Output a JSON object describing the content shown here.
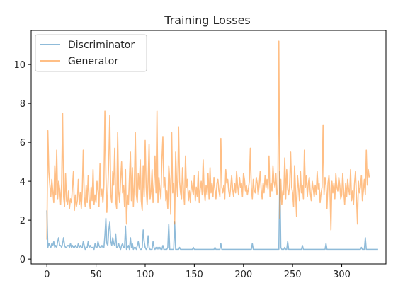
{
  "chart_data": {
    "type": "line",
    "title": "Training Losses",
    "xlabel": "",
    "ylabel": "",
    "xlim": [
      -16,
      345
    ],
    "ylim": [
      -0.25,
      11.75
    ],
    "xticks": [
      0,
      50,
      100,
      150,
      200,
      250,
      300
    ],
    "yticks": [
      0,
      2,
      4,
      6,
      8,
      10
    ],
    "grid": false,
    "legend_position": "top-left",
    "series": [
      {
        "name": "Discriminator",
        "color": "#1f77b4",
        "alpha": 0.5,
        "x_start": 0,
        "x_step": 1,
        "values": [
          2.5,
          0.6,
          0.8,
          0.7,
          0.6,
          0.8,
          0.7,
          0.9,
          0.6,
          0.7,
          0.6,
          0.9,
          1.1,
          0.7,
          0.7,
          0.6,
          0.8,
          1.1,
          0.7,
          0.6,
          0.6,
          0.7,
          0.7,
          0.6,
          0.8,
          0.6,
          0.7,
          0.6,
          0.6,
          0.7,
          0.6,
          0.6,
          0.8,
          0.6,
          0.7,
          0.6,
          0.6,
          0.9,
          0.7,
          0.5,
          0.6,
          0.6,
          0.9,
          0.6,
          0.7,
          0.6,
          0.6,
          0.6,
          0.5,
          0.8,
          0.6,
          0.6,
          0.9,
          0.7,
          0.6,
          0.6,
          0.7,
          0.6,
          0.6,
          1.2,
          2.1,
          0.8,
          0.7,
          1.5,
          1.9,
          0.9,
          0.7,
          1.1,
          0.8,
          0.7,
          1.3,
          0.6,
          0.6,
          0.8,
          0.6,
          0.5,
          0.7,
          0.8,
          0.6,
          0.6,
          1.7,
          0.5,
          0.6,
          0.7,
          0.5,
          1.1,
          0.6,
          0.8,
          0.5,
          0.6,
          0.6,
          0.5,
          0.7,
          0.9,
          0.6,
          0.5,
          0.5,
          0.6,
          1.5,
          0.9,
          0.6,
          0.5,
          0.6,
          1.2,
          0.6,
          0.5,
          0.5,
          0.5,
          0.9,
          0.6,
          0.5,
          0.6,
          0.5,
          0.6,
          0.5,
          0.6,
          0.5,
          0.5,
          0.7,
          0.5,
          0.5,
          0.5,
          0.5,
          0.6,
          1.8,
          0.5,
          0.5,
          0.5,
          0.5,
          0.5,
          1.9,
          0.5,
          0.5,
          0.5,
          0.5,
          0.6,
          0.5,
          0.5,
          0.5,
          0.5,
          0.5,
          0.5,
          0.5,
          0.5,
          0.5,
          0.5,
          0.5,
          0.5,
          0.5,
          0.6,
          0.5,
          0.5,
          0.5,
          0.5,
          0.5,
          0.5,
          0.5,
          0.5,
          0.5,
          0.5,
          0.5,
          0.5,
          0.5,
          0.5,
          0.5,
          0.5,
          0.5,
          0.5,
          0.5,
          0.5,
          0.5,
          0.6,
          0.5,
          0.5,
          0.5,
          0.5,
          0.5,
          0.8,
          0.5,
          0.5,
          0.5,
          0.5,
          0.5,
          0.5,
          0.5,
          0.5,
          0.5,
          0.5,
          0.5,
          0.5,
          0.5,
          0.5,
          0.5,
          0.5,
          0.5,
          0.5,
          0.5,
          0.5,
          0.5,
          0.5,
          0.5,
          0.5,
          0.5,
          0.5,
          0.5,
          0.5,
          0.5,
          0.5,
          0.5,
          0.8,
          0.5,
          0.5,
          0.5,
          0.5,
          0.5,
          0.5,
          0.5,
          0.5,
          0.5,
          0.5,
          0.5,
          0.5,
          0.5,
          0.5,
          0.5,
          0.5,
          0.5,
          0.5,
          0.5,
          0.5,
          0.5,
          0.5,
          0.5,
          0.5,
          0.5,
          0.5,
          0.5,
          4.5,
          0.6,
          0.5,
          0.5,
          0.5,
          0.6,
          0.5,
          0.5,
          0.9,
          0.5,
          0.5,
          0.5,
          0.5,
          0.5,
          0.5,
          0.5,
          0.5,
          0.5,
          0.5,
          0.5,
          0.5,
          0.5,
          0.5,
          0.7,
          0.5,
          0.5,
          0.5,
          0.5,
          0.5,
          0.5,
          0.5,
          0.5,
          0.5,
          0.5,
          0.5,
          0.5,
          0.5,
          0.5,
          0.5,
          0.5,
          0.5,
          0.5,
          0.5,
          0.5,
          0.5,
          0.5,
          0.5,
          0.8,
          0.5,
          0.5,
          0.5,
          0.5,
          0.5,
          0.5,
          0.5,
          0.5,
          0.5,
          0.5,
          0.5,
          0.5,
          0.5,
          0.5,
          0.5,
          0.5,
          0.5,
          0.5,
          0.5,
          0.5,
          0.5,
          0.5,
          0.5,
          0.5,
          0.5,
          0.5,
          0.5,
          0.5,
          0.5,
          0.5,
          0.5,
          0.5,
          0.5,
          0.5,
          0.5,
          0.6,
          0.5,
          0.5,
          0.5,
          1.1,
          0.5,
          0.5,
          0.5,
          0.5,
          0.5,
          0.5,
          0.5,
          0.5,
          0.5,
          0.5,
          0.5,
          0.5,
          0.5
        ]
      },
      {
        "name": "Generator",
        "color": "#ff7f0e",
        "alpha": 0.5,
        "x_start": 0,
        "x_step": 1,
        "values": [
          1.0,
          6.6,
          4.5,
          3.8,
          3.2,
          4.1,
          3.5,
          2.9,
          4.8,
          3.3,
          5.6,
          3.1,
          4.0,
          3.6,
          2.8,
          3.9,
          7.5,
          3.2,
          2.7,
          4.4,
          3.0,
          2.8,
          3.5,
          2.6,
          3.1,
          2.9,
          3.7,
          4.5,
          2.5,
          3.3,
          2.7,
          3.0,
          4.1,
          2.8,
          3.4,
          2.6,
          3.5,
          5.6,
          3.2,
          2.7,
          3.8,
          2.9,
          4.3,
          3.1,
          2.6,
          3.7,
          3.0,
          4.6,
          2.8,
          3.3,
          2.9,
          4.0,
          3.5,
          2.7,
          4.9,
          3.2,
          3.6,
          2.9,
          3.8,
          7.6,
          4.4,
          2.4,
          3.6,
          5.1,
          7.4,
          3.3,
          2.9,
          4.5,
          3.8,
          5.7,
          3.0,
          2.6,
          6.5,
          3.5,
          2.9,
          4.1,
          5.0,
          3.4,
          3.8,
          2.7,
          4.6,
          1.8,
          3.3,
          2.8,
          4.2,
          5.5,
          3.0,
          4.7,
          2.7,
          3.9,
          6.5,
          3.3,
          2.9,
          4.4,
          3.6,
          5.1,
          3.0,
          2.5,
          4.8,
          3.2,
          6.1,
          3.7,
          2.8,
          4.0,
          5.9,
          3.1,
          3.5,
          4.6,
          2.9,
          3.8,
          5.3,
          3.4,
          7.6,
          2.9,
          4.2,
          3.6,
          3.1,
          5.1,
          6.3,
          3.7,
          4.2,
          3.0,
          3.5,
          2.6,
          4.8,
          4.1,
          2.3,
          6.5,
          3.4,
          3.9,
          1.8,
          5.5,
          4.0,
          3.2,
          6.8,
          4.0,
          3.4,
          3.1,
          4.7,
          3.5,
          2.8,
          5.3,
          3.7,
          4.1,
          3.0,
          3.5,
          2.9,
          4.0,
          3.6,
          3.3,
          4.3,
          3.0,
          3.7,
          3.2,
          4.5,
          2.9,
          3.6,
          4.0,
          3.3,
          5.1,
          3.5,
          3.0,
          3.8,
          3.3,
          4.4,
          3.1,
          4.7,
          3.4,
          3.9,
          3.2,
          4.2,
          3.6,
          3.1,
          3.9,
          4.1,
          3.5,
          3.2,
          6.2,
          3.7,
          3.4,
          3.8,
          3.1,
          4.6,
          3.9,
          4.1,
          3.5,
          3.2,
          3.7,
          4.3,
          3.6,
          3.2,
          3.9,
          3.4,
          4.5,
          3.8,
          3.3,
          4.2,
          3.7,
          3.9,
          3.2,
          4.4,
          4.1,
          3.5,
          3.8,
          3.3,
          3.6,
          4.0,
          5.7,
          3.7,
          3.1,
          4.1,
          3.5,
          3.4,
          4.2,
          3.9,
          3.3,
          3.8,
          4.5,
          3.6,
          3.1,
          3.9,
          3.4,
          4.3,
          3.7,
          4.1,
          3.6,
          5.3,
          3.2,
          3.9,
          3.5,
          4.8,
          4.0,
          3.7,
          4.4,
          3.3,
          3.6,
          11.2,
          2.1,
          4.1,
          2.8,
          3.5,
          3.3,
          5.2,
          3.1,
          4.6,
          3.6,
          3.3,
          3.9,
          5.5,
          3.7,
          3.4,
          2.7,
          4.8,
          3.5,
          2.2,
          4.3,
          3.7,
          3.0,
          4.5,
          3.4,
          3.8,
          3.1,
          5.6,
          3.7,
          4.3,
          3.2,
          3.9,
          4.2,
          3.4,
          3.0,
          4.0,
          3.6,
          3.2,
          3.8,
          3.3,
          4.5,
          3.6,
          3.9,
          2.9,
          3.4,
          3.7,
          6.9,
          3.3,
          4.2,
          3.8,
          2.6,
          3.9,
          4.3,
          3.5,
          1.5,
          4.0,
          3.4,
          3.9,
          3.1,
          4.4,
          3.7,
          3.5,
          4.2,
          3.8,
          3.1,
          3.3,
          4.4,
          3.5,
          2.8,
          3.9,
          3.2,
          4.1,
          3.6,
          3.3,
          4.6,
          3.0,
          3.5,
          2.8,
          3.9,
          4.5,
          3.2,
          1.8,
          4.0,
          3.4,
          3.7,
          4.3,
          3.0,
          3.5,
          4.1,
          3.3,
          5.6,
          3.8,
          4.6,
          4.2
        ]
      }
    ]
  }
}
